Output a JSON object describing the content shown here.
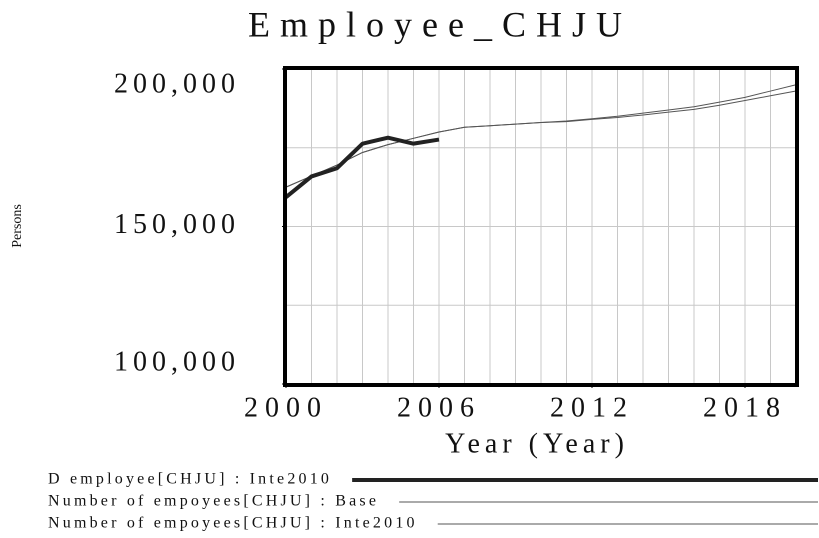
{
  "chart_data": {
    "type": "line",
    "title": "Employee_CHJU",
    "ylabel": "Persons",
    "xlabel": "Year (Year)",
    "x": [
      2000,
      2001,
      2002,
      2003,
      2004,
      2005,
      2006,
      2007,
      2008,
      2009,
      2010,
      2011,
      2012,
      2013,
      2014,
      2015,
      2016,
      2017,
      2018,
      2019,
      2020
    ],
    "series": [
      {
        "name": "D employee[CHJU] : Inte2010",
        "color": "#222222",
        "line_width": 4,
        "values": [
          159300,
          165900,
          168500,
          176300,
          178200,
          176300,
          177600,
          null,
          null,
          null,
          null,
          null,
          null,
          null,
          null,
          null,
          null,
          null,
          null,
          null,
          null
        ]
      },
      {
        "name": "Number of empoyees[CHJU] : Base",
        "color": "#555555",
        "line_width": 1,
        "values": [
          162500,
          166000,
          169500,
          173500,
          176000,
          178000,
          180000,
          181500,
          182000,
          182500,
          183000,
          183500,
          184200,
          185000,
          186000,
          187000,
          188000,
          189500,
          191000,
          193000,
          195000
        ]
      },
      {
        "name": "Number of empoyees[CHJU] : Inte2010",
        "color": "#555555",
        "line_width": 1,
        "values": [
          162500,
          166000,
          169500,
          173500,
          176000,
          178000,
          180000,
          181500,
          182000,
          182500,
          183000,
          183300,
          184000,
          184600,
          185400,
          186300,
          187200,
          188500,
          190000,
          191500,
          193000
        ]
      }
    ],
    "xlim": [
      2000,
      2020
    ],
    "xticks": [
      2000,
      2006,
      2012,
      2018
    ],
    "xgrid": [
      2001,
      2002,
      2003,
      2004,
      2005,
      2006,
      2007,
      2008,
      2009,
      2010,
      2011,
      2012,
      2013,
      2014,
      2015,
      2016,
      2017,
      2018,
      2019
    ],
    "ylim": [
      100000,
      200000
    ],
    "yticks": [
      {
        "value": 100000,
        "label": "100,000"
      },
      {
        "value": 150000,
        "label": "150,000"
      },
      {
        "value": 200000,
        "label": "200,000"
      }
    ],
    "ygrid": [
      125000,
      150000,
      175000
    ],
    "grid": true
  }
}
